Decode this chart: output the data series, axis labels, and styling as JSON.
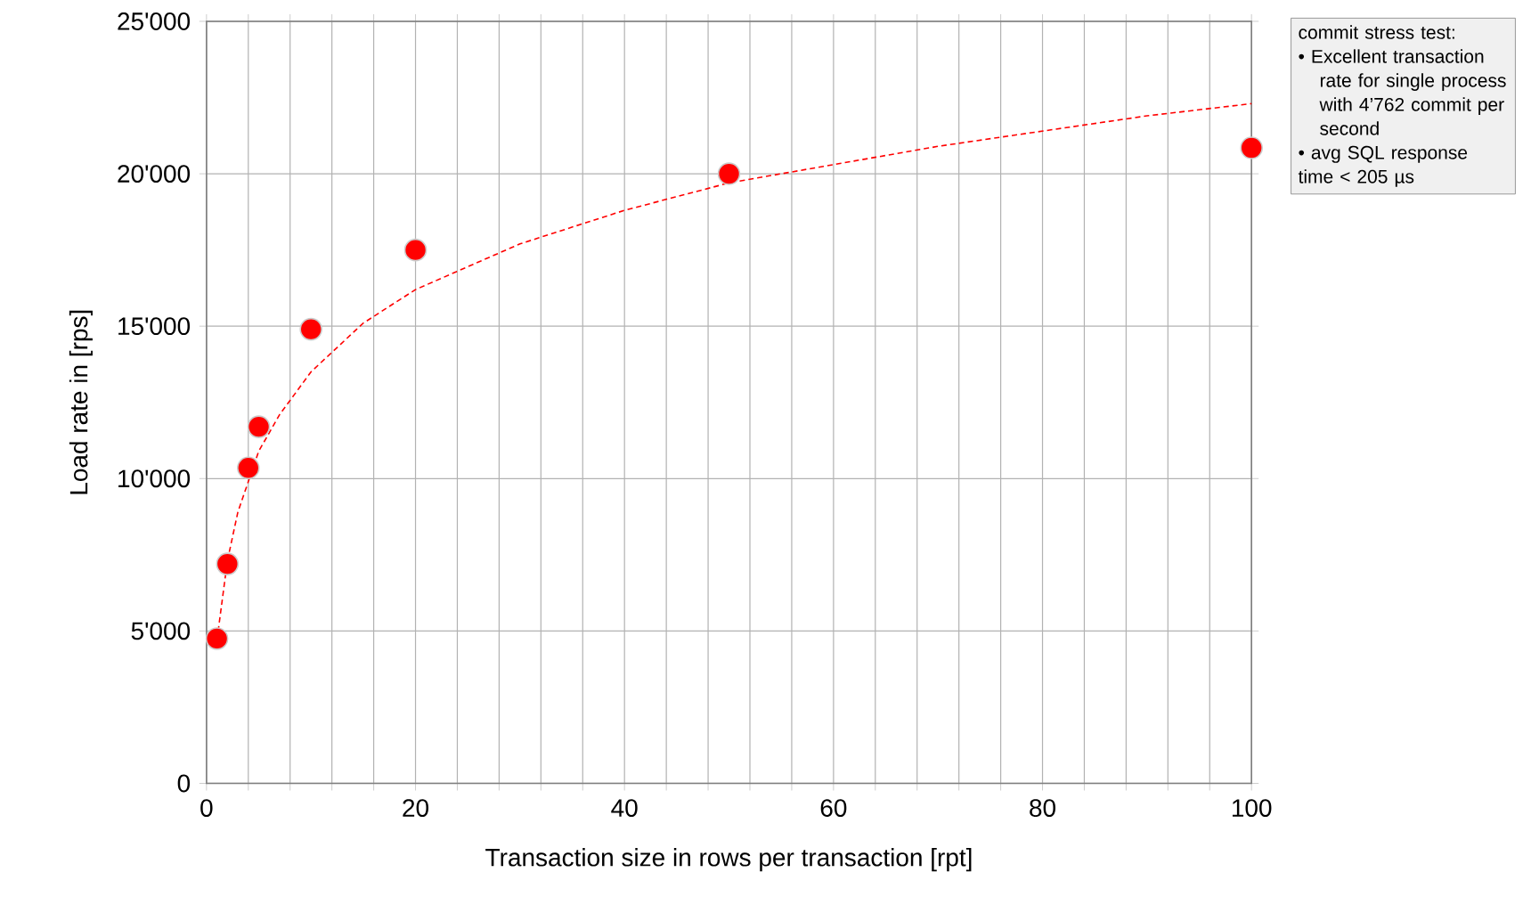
{
  "chart_data": {
    "type": "scatter",
    "xlabel": "Transaction size in rows per transaction [rpt]",
    "ylabel": "Load rate in [rps]",
    "xlim": [
      0,
      100
    ],
    "ylim": [
      0,
      25000
    ],
    "xticks": [
      0,
      {
        "value": 4,
        "label": null
      },
      {
        "value": 8,
        "label": null
      },
      {
        "value": 12,
        "label": null
      },
      {
        "value": 16,
        "label": null
      },
      20,
      {
        "value": 24,
        "label": null
      },
      {
        "value": 28,
        "label": null
      },
      {
        "value": 32,
        "label": null
      },
      {
        "value": 36,
        "label": null
      },
      40,
      {
        "value": 44,
        "label": null
      },
      {
        "value": 48,
        "label": null
      },
      {
        "value": 52,
        "label": null
      },
      {
        "value": 56,
        "label": null
      },
      60,
      {
        "value": 64,
        "label": null
      },
      {
        "value": 68,
        "label": null
      },
      {
        "value": 72,
        "label": null
      },
      {
        "value": 76,
        "label": null
      },
      80,
      {
        "value": 84,
        "label": null
      },
      {
        "value": 88,
        "label": null
      },
      {
        "value": 92,
        "label": null
      },
      {
        "value": 96,
        "label": null
      },
      100
    ],
    "yticks": [
      0,
      {
        "value": 5000,
        "label": "5'000"
      },
      {
        "value": 10000,
        "label": "10'000"
      },
      {
        "value": 15000,
        "label": "15'000"
      },
      {
        "value": 20000,
        "label": "20'000"
      },
      {
        "value": 25000,
        "label": "25'000"
      }
    ],
    "grid": true,
    "annotations": [
      "commit stress test:",
      "• Excellent transaction rate  for single process with 4’762 commit per second",
      "• avg SQL response time  < 205 µs"
    ],
    "series": [
      {
        "color": "#ff0000",
        "marker": "circle",
        "x": [
          1,
          2,
          4,
          5,
          10,
          20,
          50,
          100
        ],
        "values": [
          4750,
          7200,
          10350,
          11700,
          14900,
          17500,
          20000,
          20850
        ]
      },
      {
        "type": "line",
        "color": "#ff0000",
        "line_style": "dashed",
        "marker": "none",
        "x": [
          1,
          2,
          3,
          5,
          7,
          10,
          15,
          20,
          30,
          40,
          50,
          60,
          70,
          80,
          90,
          100
        ],
        "values": [
          4700,
          7300,
          8900,
          10900,
          12100,
          13500,
          15100,
          16200,
          17700,
          18800,
          19700,
          20300,
          20900,
          21400,
          21900,
          22300
        ]
      }
    ]
  }
}
